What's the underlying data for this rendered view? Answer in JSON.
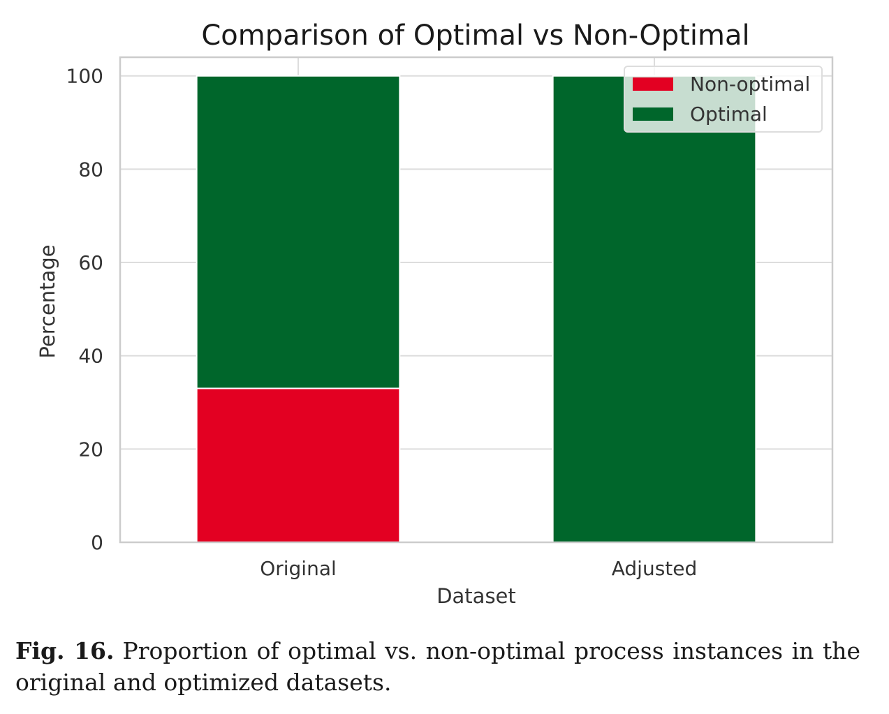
{
  "chart_data": {
    "type": "bar",
    "stacked": true,
    "title": "Comparison of Optimal vs Non-Optimal",
    "xlabel": "Dataset",
    "ylabel": "Percentage",
    "categories": [
      "Original",
      "Adjusted"
    ],
    "series": [
      {
        "name": "Non-optimal",
        "values": [
          33,
          0
        ],
        "color": "#e30022"
      },
      {
        "name": "Optimal",
        "values": [
          67,
          100
        ],
        "color": "#00662b"
      }
    ],
    "ylim": [
      0,
      104
    ],
    "yticks": [
      0,
      20,
      40,
      60,
      80,
      100
    ],
    "grid": true,
    "legend": "top-right"
  },
  "caption": {
    "label": "Fig. 16.",
    "text": "Proportion of optimal vs. non-optimal process instances in the original and optimized datasets."
  }
}
